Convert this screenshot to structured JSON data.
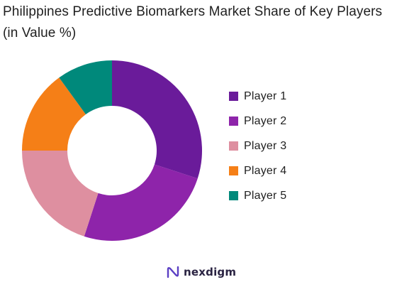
{
  "chart_data": {
    "type": "pie",
    "title": "Philippines Predictive Biomarkers Market Share of Key Players (in Value %)",
    "categories": [
      "Player 1",
      "Player 2",
      "Player 3",
      "Player 4",
      "Player 5"
    ],
    "values": [
      30,
      25,
      20,
      15,
      10
    ],
    "colors": [
      "#6a1b9a",
      "#8e24aa",
      "#de8fa0",
      "#f57f17",
      "#00897b"
    ],
    "donut": true,
    "legend_position": "right"
  },
  "footer": {
    "logo_text": "nexdigm",
    "logo_icon": "nexdigm-logo-icon"
  }
}
